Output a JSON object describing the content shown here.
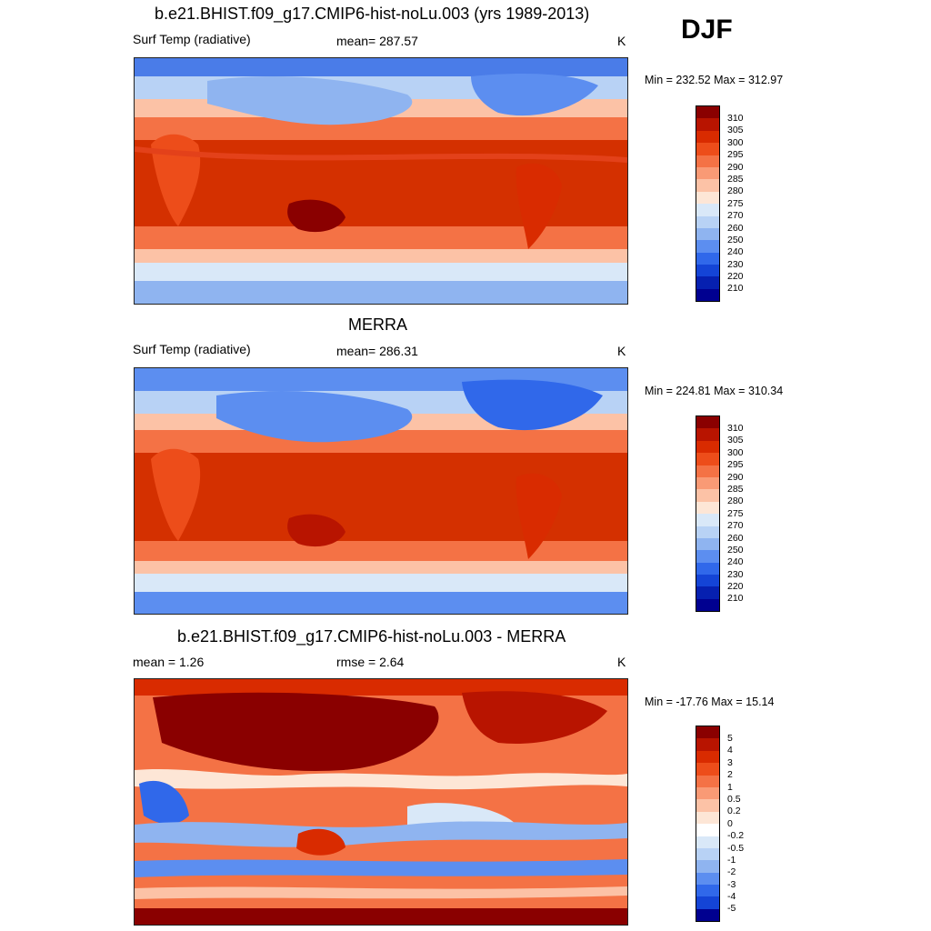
{
  "season": "DJF",
  "panels": [
    {
      "title": "b.e21.BHIST.f09_g17.CMIP6-hist-noLu.003 (yrs 1989-2013)",
      "left_label": "Surf Temp (radiative)",
      "center_label": "mean= 287.57",
      "units": "K",
      "minmax": "Min = 232.52 Max = 312.97",
      "colorbar": {
        "labels": [
          "310",
          "305",
          "300",
          "295",
          "290",
          "285",
          "280",
          "275",
          "270",
          "260",
          "250",
          "240",
          "230",
          "220",
          "210"
        ],
        "colors": [
          "#8a0000",
          "#b81400",
          "#d92b00",
          "#ed4d1a",
          "#f47245",
          "#f99a75",
          "#fcc2a6",
          "#fde6d6",
          "#d9e8f8",
          "#b8d2f5",
          "#8fb4f0",
          "#5c8ef0",
          "#3068ea",
          "#1444d6",
          "#0620b0",
          "#000090"
        ]
      }
    },
    {
      "title": "MERRA",
      "left_label": "Surf Temp (radiative)",
      "center_label": "mean= 286.31",
      "units": "K",
      "minmax": "Min = 224.81 Max = 310.34",
      "colorbar": {
        "labels": [
          "310",
          "305",
          "300",
          "295",
          "290",
          "285",
          "280",
          "275",
          "270",
          "260",
          "250",
          "240",
          "230",
          "220",
          "210"
        ],
        "colors": [
          "#8a0000",
          "#b81400",
          "#d92b00",
          "#ed4d1a",
          "#f47245",
          "#f99a75",
          "#fcc2a6",
          "#fde6d6",
          "#d9e8f8",
          "#b8d2f5",
          "#8fb4f0",
          "#5c8ef0",
          "#3068ea",
          "#1444d6",
          "#0620b0",
          "#000090"
        ]
      }
    },
    {
      "title": "b.e21.BHIST.f09_g17.CMIP6-hist-noLu.003 - MERRA",
      "left_label": "mean =   1.26",
      "center_label": "rmse =   2.64",
      "units": "K",
      "minmax": "Min = -17.76 Max =  15.14",
      "colorbar": {
        "labels": [
          "5",
          "4",
          "3",
          "2",
          "1",
          "0.5",
          "0.2",
          "0",
          "-0.2",
          "-0.5",
          "-1",
          "-2",
          "-3",
          "-4",
          "-5"
        ],
        "colors": [
          "#8a0000",
          "#b81400",
          "#d92b00",
          "#ed4d1a",
          "#f47245",
          "#f99a75",
          "#fcc2a6",
          "#fde6d6",
          "#ffffff",
          "#d9e8f8",
          "#b8d2f5",
          "#8fb4f0",
          "#5c8ef0",
          "#3068ea",
          "#1444d6",
          "#000090"
        ]
      }
    }
  ]
}
